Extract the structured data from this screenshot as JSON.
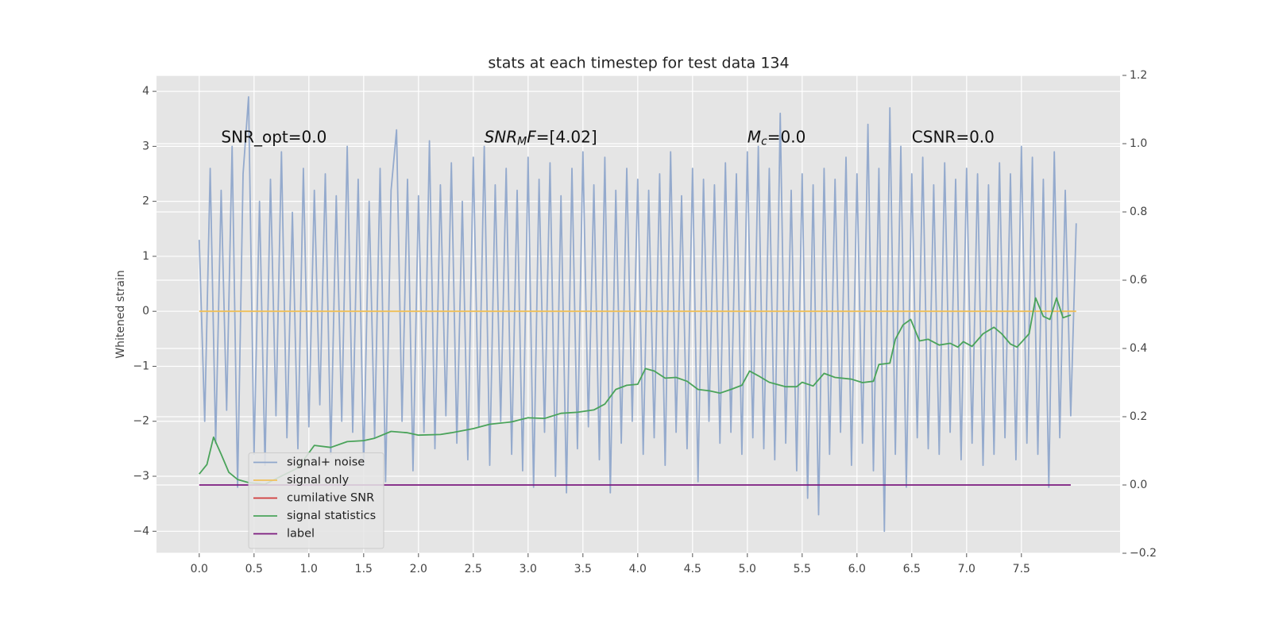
{
  "chart_data": {
    "type": "line",
    "title": "stats at each timestep for test data 134",
    "ylabel": "Whitened strain",
    "xlim": [
      -0.39,
      8.4
    ],
    "ylim": [
      -4.4,
      4.29
    ],
    "y2lim": [
      -0.2,
      1.2
    ],
    "xticks": [
      {
        "value": 0,
        "label": "0.0"
      },
      {
        "value": 0.5,
        "label": "0.5"
      },
      {
        "value": 1,
        "label": "1.0"
      },
      {
        "value": 1.5,
        "label": "1.5"
      },
      {
        "value": 2,
        "label": "2.0"
      },
      {
        "value": 2.5,
        "label": "2.5"
      },
      {
        "value": 3,
        "label": "3.0"
      },
      {
        "value": 3.5,
        "label": "3.5"
      },
      {
        "value": 4,
        "label": "4.0"
      },
      {
        "value": 4.5,
        "label": "4.5"
      },
      {
        "value": 5,
        "label": "5.0"
      },
      {
        "value": 5.5,
        "label": "5.5"
      },
      {
        "value": 6,
        "label": "6.0"
      },
      {
        "value": 6.5,
        "label": "6.5"
      },
      {
        "value": 7,
        "label": "7.0"
      },
      {
        "value": 7.5,
        "label": "7.5"
      }
    ],
    "yticks": [
      {
        "value": -4,
        "label": "−4"
      },
      {
        "value": -3,
        "label": "−3"
      },
      {
        "value": -2,
        "label": "−2"
      },
      {
        "value": -1,
        "label": "−1"
      },
      0,
      1,
      2,
      3,
      4
    ],
    "y2ticks": [
      {
        "value": -0.2,
        "label": "−0.2"
      },
      {
        "value": 0,
        "label": "0.0"
      },
      {
        "value": 0.2,
        "label": "0.2"
      },
      {
        "value": 0.4,
        "label": "0.4"
      },
      {
        "value": 0.6,
        "label": "0.6"
      },
      {
        "value": 0.8,
        "label": "0.8"
      },
      {
        "value": 1,
        "label": "1.0"
      },
      {
        "value": 1.2,
        "label": "1.2"
      }
    ],
    "grid": true,
    "legend": "lower left",
    "annotations": [
      {
        "x": 0.2,
        "y": 3.16,
        "parts": [
          {
            "text": "SNR_opt=0.0",
            "style": "normal"
          }
        ]
      },
      {
        "x": 2.6,
        "y": 3.16,
        "parts": [
          {
            "text": "SNR",
            "style": "italic"
          },
          {
            "text": "M",
            "style": "sub"
          },
          {
            "text": "F",
            "style": "italic"
          },
          {
            "text": "=[4.02]",
            "style": "normal"
          }
        ]
      },
      {
        "x": 5.0,
        "y": 3.16,
        "parts": [
          {
            "text": "M",
            "style": "italic"
          },
          {
            "text": "c",
            "style": "sub"
          },
          {
            "text": "=0.0",
            "style": "normal"
          }
        ]
      },
      {
        "x": 6.5,
        "y": 3.16,
        "parts": [
          {
            "text": "CSNR=0.0",
            "style": "normal"
          }
        ]
      }
    ],
    "series": [
      {
        "name": "signal+ noise",
        "color": "#8fa6cb",
        "x": [
          0,
          0.05,
          0.1,
          0.15,
          0.2,
          0.25,
          0.3,
          0.35,
          0.4,
          0.45,
          0.5,
          0.55,
          0.6,
          0.65,
          0.7,
          0.75,
          0.8,
          0.85,
          0.9,
          0.95,
          1,
          1.05,
          1.1,
          1.15,
          1.2,
          1.25,
          1.3,
          1.35,
          1.4,
          1.45,
          1.5,
          1.55,
          1.6,
          1.65,
          1.7,
          1.75,
          1.8,
          1.85,
          1.9,
          1.95,
          2,
          2.05,
          2.1,
          2.15,
          2.2,
          2.25,
          2.3,
          2.35,
          2.4,
          2.45,
          2.5,
          2.55,
          2.6,
          2.65,
          2.7,
          2.75,
          2.8,
          2.85,
          2.9,
          2.95,
          3,
          3.05,
          3.1,
          3.15,
          3.2,
          3.25,
          3.3,
          3.35,
          3.4,
          3.45,
          3.5,
          3.55,
          3.6,
          3.65,
          3.7,
          3.75,
          3.8,
          3.85,
          3.9,
          3.95,
          4,
          4.05,
          4.1,
          4.15,
          4.2,
          4.25,
          4.3,
          4.35,
          4.4,
          4.45,
          4.5,
          4.55,
          4.6,
          4.65,
          4.7,
          4.75,
          4.8,
          4.85,
          4.9,
          4.95,
          5,
          5.05,
          5.1,
          5.15,
          5.2,
          5.25,
          5.3,
          5.35,
          5.4,
          5.45,
          5.5,
          5.55,
          5.6,
          5.65,
          5.7,
          5.75,
          5.8,
          5.85,
          5.9,
          5.95,
          6,
          6.05,
          6.1,
          6.15,
          6.2,
          6.25,
          6.3,
          6.35,
          6.4,
          6.45,
          6.5,
          6.55,
          6.6,
          6.65,
          6.7,
          6.75,
          6.8,
          6.85,
          6.9,
          6.95,
          7,
          7.05,
          7.1,
          7.15,
          7.2,
          7.25,
          7.3,
          7.35,
          7.4,
          7.45,
          7.5,
          7.55,
          7.6,
          7.65,
          7.7,
          7.75,
          7.8,
          7.85,
          7.9,
          7.95,
          8
        ],
        "values": [
          1.3,
          -2.0,
          2.6,
          -2.4,
          2.2,
          -1.8,
          3.0,
          -3.2,
          2.5,
          3.9,
          -2.6,
          2.0,
          -2.8,
          2.4,
          -1.9,
          2.9,
          -2.3,
          1.8,
          -2.5,
          2.6,
          -2.1,
          2.2,
          -1.7,
          2.5,
          -2.6,
          2.1,
          -2.0,
          3.0,
          -2.2,
          2.4,
          -2.8,
          2.0,
          -2.3,
          2.6,
          -3.1,
          2.2,
          3.3,
          -2.0,
          2.4,
          -2.9,
          2.1,
          -2.2,
          3.1,
          -2.5,
          2.3,
          -1.9,
          2.7,
          -2.4,
          2.0,
          -2.7,
          2.8,
          -2.1,
          3.0,
          -2.8,
          2.3,
          -2.0,
          2.6,
          -2.6,
          2.2,
          -2.9,
          2.8,
          -3.2,
          2.4,
          -2.2,
          2.7,
          -3.0,
          2.1,
          -3.3,
          2.6,
          -2.5,
          2.9,
          -2.1,
          2.3,
          -2.7,
          2.8,
          -3.3,
          2.2,
          -2.4,
          2.6,
          -2.0,
          2.4,
          -2.6,
          2.2,
          -2.3,
          2.5,
          -2.8,
          2.9,
          -2.2,
          2.1,
          -2.5,
          2.6,
          -3.1,
          2.4,
          -2.0,
          2.3,
          -2.4,
          2.7,
          -2.2,
          2.5,
          -2.6,
          2.9,
          -2.3,
          3.0,
          -2.5,
          2.6,
          -2.7,
          3.6,
          -2.4,
          2.2,
          -2.9,
          2.5,
          -3.4,
          2.3,
          -3.7,
          2.6,
          -2.6,
          2.4,
          -2.2,
          2.8,
          -2.8,
          2.5,
          -2.4,
          3.4,
          -2.9,
          2.6,
          -4.0,
          3.7,
          -2.6,
          3.0,
          -3.2,
          2.5,
          -2.3,
          2.8,
          -2.5,
          2.3,
          -2.6,
          2.7,
          -2.2,
          2.4,
          -2.7,
          2.6,
          -2.4,
          2.5,
          -2.8,
          2.3,
          -2.6,
          2.7,
          -2.3,
          2.5,
          -2.7,
          3.0,
          -2.4,
          2.8,
          -2.6,
          2.4,
          -3.2,
          2.9,
          -2.3,
          2.2,
          -1.9,
          1.6
        ]
      },
      {
        "name": "signal only",
        "color": "#f0c05a",
        "x": [
          0,
          8
        ],
        "values": [
          0,
          0
        ]
      },
      {
        "name": "cumilative SNR",
        "color": "#d03a3a",
        "x": [],
        "values": []
      },
      {
        "name": "signal statistics",
        "color": "#4aa35a",
        "axis": "y2",
        "x": [
          0,
          0.07,
          0.13,
          0.2,
          0.27,
          0.35,
          0.45,
          0.6,
          0.9,
          1.05,
          1.2,
          1.35,
          1.5,
          1.6,
          1.75,
          1.9,
          2.0,
          2.2,
          2.3,
          2.5,
          2.65,
          2.85,
          3.0,
          3.15,
          3.3,
          3.45,
          3.6,
          3.7,
          3.8,
          3.9,
          4.0,
          4.07,
          4.15,
          4.25,
          4.35,
          4.45,
          4.55,
          4.65,
          4.75,
          4.85,
          4.95,
          5.02,
          5.1,
          5.2,
          5.35,
          5.45,
          5.5,
          5.6,
          5.7,
          5.8,
          5.95,
          6.05,
          6.15,
          6.2,
          6.3,
          6.35,
          6.42,
          6.49,
          6.57,
          6.65,
          6.75,
          6.85,
          6.92,
          6.97,
          7.05,
          7.15,
          7.25,
          7.32,
          7.4,
          7.46,
          7.57,
          7.63,
          7.7,
          7.76,
          7.82,
          7.88,
          7.95
        ],
        "values": [
          0.032,
          0.06,
          0.14,
          0.09,
          0.037,
          0.016,
          0.007,
          0.002,
          0.05,
          0.116,
          0.11,
          0.127,
          0.13,
          0.137,
          0.157,
          0.153,
          0.146,
          0.148,
          0.153,
          0.165,
          0.178,
          0.185,
          0.197,
          0.195,
          0.21,
          0.213,
          0.22,
          0.237,
          0.28,
          0.292,
          0.295,
          0.341,
          0.334,
          0.313,
          0.315,
          0.304,
          0.28,
          0.276,
          0.269,
          0.28,
          0.292,
          0.334,
          0.32,
          0.301,
          0.288,
          0.288,
          0.301,
          0.29,
          0.327,
          0.315,
          0.31,
          0.3,
          0.304,
          0.353,
          0.357,
          0.427,
          0.469,
          0.485,
          0.422,
          0.427,
          0.41,
          0.415,
          0.404,
          0.42,
          0.406,
          0.443,
          0.462,
          0.443,
          0.413,
          0.404,
          0.443,
          0.548,
          0.494,
          0.485,
          0.548,
          0.49,
          0.498
        ]
      },
      {
        "name": "label",
        "color": "#7b1a7e",
        "axis": "y2",
        "x": [
          0,
          7.95
        ],
        "values": [
          0,
          0
        ]
      }
    ]
  }
}
